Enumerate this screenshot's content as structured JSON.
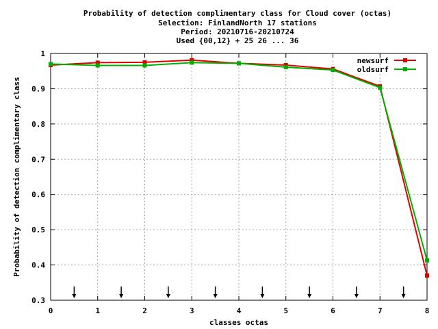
{
  "chart_data": {
    "type": "line",
    "title_lines": [
      "Probability of detection complimentary class  for Cloud cover (octas)",
      "Selection: FinlandNorth     17 stations",
      "Period: 20210716-20210724",
      "Used {00,12} + 25 26 ... 36"
    ],
    "xlabel": "classes octas",
    "ylabel": "Probability of detection complimentary class",
    "xlim": [
      0,
      8
    ],
    "ylim": [
      0.3,
      1.0
    ],
    "x_ticks": [
      "0",
      "1",
      "2",
      "3",
      "4",
      "5",
      "6",
      "7",
      "8"
    ],
    "y_ticks": [
      "0.3",
      "0.4",
      "0.5",
      "0.6",
      "0.7",
      "0.8",
      "0.9",
      "1"
    ],
    "grid": true,
    "legend_position": "top-right",
    "x": [
      0,
      1,
      2,
      3,
      4,
      5,
      6,
      7,
      8
    ],
    "series": [
      {
        "name": "newsurf",
        "color": "#e00000",
        "values": [
          0.967,
          0.974,
          0.975,
          0.981,
          0.972,
          0.967,
          0.956,
          0.907,
          0.37
        ]
      },
      {
        "name": "oldsurf",
        "color": "#00b000",
        "values": [
          0.97,
          0.966,
          0.966,
          0.974,
          0.972,
          0.961,
          0.953,
          0.903,
          0.413
        ]
      }
    ],
    "arrow_x": [
      0.5,
      1.5,
      2.5,
      3.5,
      4.5,
      5.5,
      6.5,
      7.5
    ]
  }
}
